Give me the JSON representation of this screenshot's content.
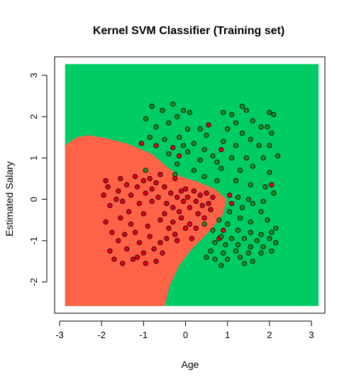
{
  "chart_data": {
    "type": "scatter",
    "title": "Kernel SVM Classifier (Training set)",
    "xlabel": "Age",
    "ylabel": "Estimated Salary",
    "xlim": [
      -3.0,
      3.3
    ],
    "ylim": [
      -2.8,
      3.4
    ],
    "x_ticks": [
      -3,
      -2,
      -1,
      0,
      1,
      2,
      3
    ],
    "y_ticks": [
      -2,
      -1,
      0,
      1,
      2,
      3
    ],
    "x_tick_labels": [
      "-3",
      "-2",
      "-1",
      "0",
      "1",
      "2",
      "3"
    ],
    "y_tick_labels": [
      "-2",
      "-1",
      "0",
      "1",
      "2",
      "3"
    ],
    "grid": false,
    "legend": "none",
    "region_colors": {
      "class_0": "#ff6347",
      "class_1": "#00cc66"
    },
    "point_colors": {
      "class_0": "#e8001c",
      "class_1": "#228b22"
    },
    "decision_boundary": [
      [
        -2.9,
        1.28
      ],
      [
        -2.6,
        1.5
      ],
      [
        -2.3,
        1.55
      ],
      [
        -1.9,
        1.48
      ],
      [
        -1.4,
        1.35
      ],
      [
        -0.8,
        1.1
      ],
      [
        -0.4,
        0.75
      ],
      [
        -0.1,
        0.55
      ],
      [
        0.3,
        0.42
      ],
      [
        0.7,
        0.25
      ],
      [
        0.98,
        0.0
      ],
      [
        0.9,
        -0.35
      ],
      [
        0.65,
        -0.68
      ],
      [
        0.4,
        -0.95
      ],
      [
        0.15,
        -1.2
      ],
      [
        -0.15,
        -1.6
      ],
      [
        -0.38,
        -2.1
      ],
      [
        -0.5,
        -2.6
      ]
    ],
    "series": [
      {
        "label": "0",
        "points": [
          [
            -1.9,
            0.45
          ],
          [
            -1.85,
            0.3
          ],
          [
            -1.95,
            0.1
          ],
          [
            -1.8,
            -0.15
          ],
          [
            -1.9,
            -0.55
          ],
          [
            -1.75,
            -0.8
          ],
          [
            -1.8,
            -1.25
          ],
          [
            -1.7,
            -1.45
          ],
          [
            -1.55,
            0.5
          ],
          [
            -1.6,
            0.2
          ],
          [
            -1.5,
            -0.05
          ],
          [
            -1.55,
            -0.45
          ],
          [
            -1.6,
            -1.0
          ],
          [
            -1.5,
            -1.55
          ],
          [
            -1.4,
            0.35
          ],
          [
            -1.3,
            0.1
          ],
          [
            -1.35,
            -0.3
          ],
          [
            -1.3,
            -0.6
          ],
          [
            -1.4,
            -1.2
          ],
          [
            -1.25,
            -1.45
          ],
          [
            -1.2,
            0.55
          ],
          [
            -1.15,
            0.3
          ],
          [
            -1.1,
            -0.1
          ],
          [
            -1.2,
            -0.8
          ],
          [
            -1.1,
            -1.05
          ],
          [
            -1.15,
            -1.4
          ],
          [
            -1.0,
            0.45
          ],
          [
            -0.95,
            0.15
          ],
          [
            -1.0,
            -0.35
          ],
          [
            -0.9,
            -0.65
          ],
          [
            -1.0,
            -1.3
          ],
          [
            -0.95,
            -1.55
          ],
          [
            -0.85,
            0.5
          ],
          [
            -0.8,
            0.25
          ],
          [
            -0.8,
            -0.05
          ],
          [
            -0.85,
            -0.9
          ],
          [
            -0.75,
            -1.2
          ],
          [
            -0.7,
            -1.5
          ],
          [
            -0.7,
            0.4
          ],
          [
            -0.65,
            0.05
          ],
          [
            -0.6,
            -0.5
          ],
          [
            -0.6,
            -1.05
          ],
          [
            -0.55,
            -1.3
          ],
          [
            -0.5,
            0.3
          ],
          [
            -0.45,
            -0.1
          ],
          [
            -0.5,
            -0.35
          ],
          [
            -0.4,
            -0.7
          ],
          [
            -0.45,
            -0.95
          ],
          [
            -0.35,
            0.15
          ],
          [
            -0.3,
            -0.2
          ],
          [
            -0.3,
            -0.55
          ],
          [
            -0.25,
            -0.85
          ],
          [
            -0.2,
            0.05
          ],
          [
            -0.15,
            -0.3
          ],
          [
            -0.2,
            -1.0
          ],
          [
            -0.1,
            0.2
          ],
          [
            -0.05,
            -0.05
          ],
          [
            -0.1,
            -0.45
          ],
          [
            0.0,
            -0.7
          ],
          [
            0.0,
            0.25
          ],
          [
            0.05,
            0.05
          ],
          [
            0.1,
            -0.2
          ],
          [
            0.1,
            -0.6
          ],
          [
            0.15,
            -0.95
          ],
          [
            0.2,
            0.2
          ],
          [
            0.25,
            -0.05
          ],
          [
            0.3,
            -0.35
          ],
          [
            0.25,
            -0.7
          ],
          [
            0.35,
            0.1
          ],
          [
            0.4,
            -0.15
          ],
          [
            0.45,
            -0.45
          ],
          [
            0.5,
            0.15
          ],
          [
            0.55,
            -0.1
          ],
          [
            0.6,
            -0.25
          ],
          [
            0.65,
            0.05
          ],
          [
            -1.05,
            1.35
          ],
          [
            -0.7,
            1.3
          ],
          [
            -0.3,
            1.25
          ],
          [
            -0.15,
            1.05
          ],
          [
            0.55,
            1.8
          ],
          [
            0.85,
            1.2
          ],
          [
            1.05,
            0.1
          ],
          [
            0.9,
            -0.75
          ],
          [
            0.8,
            -0.95
          ],
          [
            2.05,
            0.35
          ],
          [
            1.1,
            -0.1
          ],
          [
            -1.65,
            0.0
          ],
          [
            -1.45,
            -0.85
          ],
          [
            -0.25,
            0.5
          ],
          [
            -0.6,
            0.6
          ]
        ]
      },
      {
        "label": "1",
        "points": [
          [
            -0.8,
            2.25
          ],
          [
            -0.3,
            2.3
          ],
          [
            -0.05,
            2.15
          ],
          [
            0.1,
            2.1
          ],
          [
            -0.55,
            2.15
          ],
          [
            -0.2,
            2.0
          ],
          [
            -0.95,
            1.95
          ],
          [
            -0.7,
            1.75
          ],
          [
            -0.4,
            1.85
          ],
          [
            0.05,
            1.7
          ],
          [
            0.35,
            1.7
          ],
          [
            0.5,
            1.55
          ],
          [
            -0.85,
            1.5
          ],
          [
            -0.5,
            1.45
          ],
          [
            -0.15,
            1.5
          ],
          [
            0.2,
            1.35
          ],
          [
            0.45,
            1.2
          ],
          [
            0.65,
            1.05
          ],
          [
            -0.4,
            1.1
          ],
          [
            0.05,
            1.15
          ],
          [
            0.35,
            0.95
          ],
          [
            0.75,
            0.9
          ],
          [
            -0.2,
            0.85
          ],
          [
            0.2,
            0.7
          ],
          [
            -0.25,
            0.6
          ],
          [
            0.45,
            0.55
          ],
          [
            0.75,
            0.45
          ],
          [
            -0.95,
            0.7
          ],
          [
            0.9,
            2.1
          ],
          [
            1.1,
            2.05
          ],
          [
            1.35,
            2.25
          ],
          [
            1.45,
            2.15
          ],
          [
            1.2,
            1.85
          ],
          [
            1.6,
            1.9
          ],
          [
            2.0,
            2.1
          ],
          [
            2.1,
            2.05
          ],
          [
            1.0,
            1.7
          ],
          [
            1.35,
            1.6
          ],
          [
            1.8,
            1.75
          ],
          [
            2.05,
            1.6
          ],
          [
            1.55,
            1.45
          ],
          [
            0.9,
            1.4
          ],
          [
            1.2,
            1.3
          ],
          [
            1.75,
            1.3
          ],
          [
            2.0,
            1.3
          ],
          [
            1.1,
            1.0
          ],
          [
            1.45,
            1.0
          ],
          [
            1.85,
            1.0
          ],
          [
            2.2,
            1.05
          ],
          [
            1.3,
            0.7
          ],
          [
            1.6,
            0.8
          ],
          [
            2.0,
            0.65
          ],
          [
            1.2,
            0.45
          ],
          [
            1.55,
            0.35
          ],
          [
            1.9,
            0.3
          ],
          [
            2.1,
            0.15
          ],
          [
            1.25,
            0.05
          ],
          [
            1.5,
            0.0
          ],
          [
            1.85,
            -0.05
          ],
          [
            1.35,
            -0.2
          ],
          [
            1.6,
            -0.1
          ],
          [
            1.8,
            -0.3
          ],
          [
            1.05,
            -0.3
          ],
          [
            1.3,
            -0.45
          ],
          [
            1.55,
            -0.55
          ],
          [
            1.95,
            -0.5
          ],
          [
            2.15,
            -0.7
          ],
          [
            0.8,
            -0.5
          ],
          [
            1.0,
            -0.6
          ],
          [
            1.25,
            -0.75
          ],
          [
            1.55,
            -0.8
          ],
          [
            1.8,
            -0.85
          ],
          [
            2.05,
            -0.8
          ],
          [
            0.65,
            -0.75
          ],
          [
            0.85,
            -0.9
          ],
          [
            1.1,
            -0.95
          ],
          [
            1.4,
            -0.95
          ],
          [
            1.7,
            -1.0
          ],
          [
            2.0,
            -0.95
          ],
          [
            2.15,
            -1.05
          ],
          [
            0.7,
            -1.05
          ],
          [
            0.95,
            -1.1
          ],
          [
            1.25,
            -1.1
          ],
          [
            1.55,
            -1.15
          ],
          [
            1.85,
            -1.15
          ],
          [
            0.6,
            -1.25
          ],
          [
            0.9,
            -1.3
          ],
          [
            1.2,
            -1.25
          ],
          [
            1.5,
            -1.3
          ],
          [
            1.8,
            -1.3
          ],
          [
            2.05,
            -1.25
          ],
          [
            0.7,
            -1.45
          ],
          [
            1.0,
            -1.45
          ],
          [
            1.3,
            -1.4
          ],
          [
            0.85,
            -1.6
          ],
          [
            1.6,
            -1.5
          ],
          [
            0.5,
            -1.4
          ],
          [
            1.4,
            -1.55
          ],
          [
            0.45,
            -0.6
          ],
          [
            1.95,
            1.75
          ],
          [
            -0.05,
            1.3
          ],
          [
            0.85,
            0.75
          ]
        ]
      }
    ]
  }
}
